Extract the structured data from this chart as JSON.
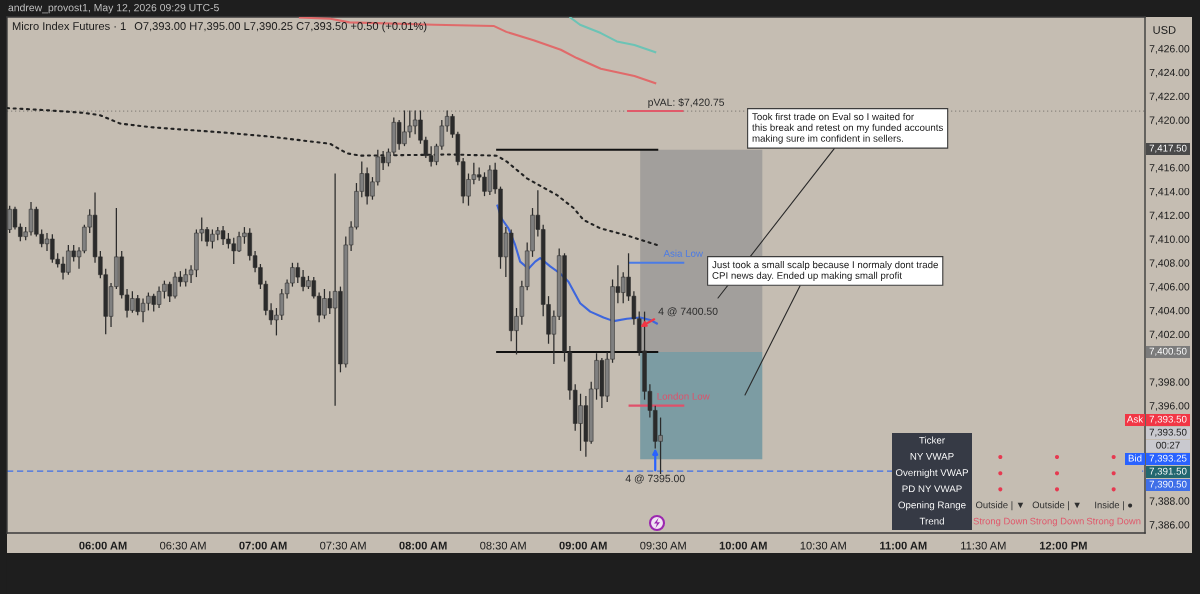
{
  "chart_data": [
    {
      "type": "candlestick",
      "title": "Micro Index Futures · 1",
      "subtitle": "O7,393.00 H7,395.00 L7,390.25 C7,393.50 +0.50 (+0.01%)",
      "ylabel": "USD",
      "color": "#2b2b2b",
      "x": [
        5.4167,
        5.45,
        5.4833,
        5.5167,
        5.55,
        5.5833,
        5.6167,
        5.65,
        5.6833,
        5.7167,
        5.75,
        5.7833,
        5.8167,
        5.85,
        5.8833,
        5.9167,
        5.95,
        5.9833,
        6.0167,
        6.05,
        6.0833,
        6.1167,
        6.15,
        6.1833,
        6.2167,
        6.25,
        6.2833,
        6.3167,
        6.35,
        6.3833,
        6.4167,
        6.45,
        6.4833,
        6.5167,
        6.55,
        6.5833,
        6.6167,
        6.65,
        6.6833,
        6.7167,
        6.75,
        6.7833,
        6.8167,
        6.85,
        6.8833,
        6.9167,
        6.95,
        6.9833,
        7.0167,
        7.05,
        7.0833,
        7.1167,
        7.15,
        7.1833,
        7.2167,
        7.25,
        7.2833,
        7.3167,
        7.35,
        7.3833,
        7.4167,
        7.45,
        7.4833,
        7.5167,
        7.55,
        7.5833,
        7.6167,
        7.65,
        7.6833,
        7.7167,
        7.75,
        7.7833,
        7.8167,
        7.85,
        7.8833,
        7.9167,
        7.95,
        7.9833,
        8.0167,
        8.05,
        8.0833,
        8.1167,
        8.15,
        8.1833,
        8.2167,
        8.25,
        8.2833,
        8.3167,
        8.35,
        8.3833,
        8.4167,
        8.45,
        8.4833,
        8.5167,
        8.55,
        8.5833,
        8.6167,
        8.65,
        8.6833,
        8.7167,
        8.75,
        8.7833,
        8.8167,
        8.85,
        8.8833,
        8.9167,
        8.95,
        8.9833,
        9.0167,
        9.05,
        9.0833,
        9.1167,
        9.15,
        9.1833,
        9.2167,
        9.25,
        9.2833,
        9.3167,
        9.35,
        9.3833,
        9.4167,
        9.45,
        9.4833
      ],
      "ohlc": [
        [
          7410.8,
          7412.8,
          7410.5,
          7412.5
        ],
        [
          7412.5,
          7412.7,
          7410.8,
          7411.0
        ],
        [
          7411.0,
          7411.3,
          7409.8,
          7410.2
        ],
        [
          7410.2,
          7411.0,
          7409.9,
          7410.6
        ],
        [
          7410.6,
          7413.1,
          7410.3,
          7412.5
        ],
        [
          7412.5,
          7412.7,
          7410.2,
          7410.4
        ],
        [
          7410.4,
          7410.8,
          7409.3,
          7409.6
        ],
        [
          7409.6,
          7410.5,
          7409.0,
          7410.0
        ],
        [
          7410.0,
          7410.4,
          7408.0,
          7408.3
        ],
        [
          7408.3,
          7408.8,
          7407.6,
          7407.9
        ],
        [
          7407.9,
          7408.5,
          7406.6,
          7407.2
        ],
        [
          7407.2,
          7409.5,
          7407.0,
          7409.0
        ],
        [
          7409.0,
          7409.5,
          7408.1,
          7408.5
        ],
        [
          7408.5,
          7409.3,
          7407.5,
          7409.0
        ],
        [
          7409.0,
          7411.2,
          7408.8,
          7411.0
        ],
        [
          7411.0,
          7412.5,
          7410.5,
          7412.0
        ],
        [
          7412.0,
          7413.9,
          7408.0,
          7408.5
        ],
        [
          7408.5,
          7409.0,
          7406.7,
          7407.0
        ],
        [
          7407.0,
          7407.5,
          7402.0,
          7403.5
        ],
        [
          7403.5,
          7406.3,
          7402.6,
          7406.0
        ],
        [
          7406.0,
          7412.6,
          7405.8,
          7408.5
        ],
        [
          7408.5,
          7409.0,
          7405.0,
          7405.3
        ],
        [
          7405.3,
          7405.8,
          7403.4,
          7404.0
        ],
        [
          7404.0,
          7405.6,
          7403.8,
          7405.0
        ],
        [
          7405.0,
          7405.3,
          7403.6,
          7403.9
        ],
        [
          7403.9,
          7405.0,
          7403.0,
          7404.6
        ],
        [
          7404.6,
          7405.5,
          7404.0,
          7405.2
        ],
        [
          7405.2,
          7405.4,
          7403.9,
          7404.5
        ],
        [
          7404.5,
          7406.0,
          7404.2,
          7405.6
        ],
        [
          7405.6,
          7406.5,
          7405.0,
          7406.2
        ],
        [
          7406.2,
          7406.4,
          7404.7,
          7405.2
        ],
        [
          7405.2,
          7407.2,
          7405.0,
          7406.8
        ],
        [
          7406.8,
          7407.3,
          7406.0,
          7406.4
        ],
        [
          7406.4,
          7407.5,
          7406.0,
          7407.0
        ],
        [
          7407.0,
          7407.8,
          7406.3,
          7407.4
        ],
        [
          7407.4,
          7410.8,
          7406.8,
          7410.5
        ],
        [
          7410.5,
          7411.8,
          7409.8,
          7410.8
        ],
        [
          7410.8,
          7411.0,
          7409.4,
          7409.8
        ],
        [
          7409.8,
          7410.8,
          7409.2,
          7410.4
        ],
        [
          7410.4,
          7411.0,
          7409.9,
          7410.7
        ],
        [
          7410.7,
          7411.1,
          7409.5,
          7410.0
        ],
        [
          7410.0,
          7410.5,
          7409.2,
          7409.6
        ],
        [
          7409.6,
          7410.1,
          7407.9,
          7409.0
        ],
        [
          7409.0,
          7410.6,
          7408.9,
          7410.2
        ],
        [
          7410.2,
          7411.0,
          7409.6,
          7410.5
        ],
        [
          7410.5,
          7410.9,
          7408.2,
          7408.6
        ],
        [
          7408.6,
          7409.0,
          7407.2,
          7407.6
        ],
        [
          7407.6,
          7407.9,
          7405.8,
          7406.2
        ],
        [
          7406.2,
          7406.5,
          7403.6,
          7404.0
        ],
        [
          7404.0,
          7404.6,
          7402.8,
          7403.2
        ],
        [
          7403.2,
          7404.2,
          7401.9,
          7403.6
        ],
        [
          7403.6,
          7405.8,
          7403.2,
          7405.4
        ],
        [
          7405.4,
          7406.6,
          7405.0,
          7406.3
        ],
        [
          7406.3,
          7408.0,
          7406.0,
          7407.6
        ],
        [
          7407.6,
          7408.0,
          7406.3,
          7406.8
        ],
        [
          7406.8,
          7407.4,
          7405.6,
          7406.0
        ],
        [
          7406.0,
          7406.9,
          7405.8,
          7406.5
        ],
        [
          7406.5,
          7406.8,
          7405.0,
          7405.2
        ],
        [
          7405.2,
          7405.5,
          7403.0,
          7403.6
        ],
        [
          7403.6,
          7405.8,
          7403.3,
          7405.0
        ],
        [
          7405.0,
          7405.6,
          7403.7,
          7404.2
        ],
        [
          7404.2,
          7415.5,
          7396.0,
          7405.6
        ],
        [
          7405.6,
          7406.0,
          7398.8,
          7399.5
        ],
        [
          7399.5,
          7410.2,
          7399.2,
          7409.5
        ],
        [
          7409.5,
          7411.5,
          7409.0,
          7411.0
        ],
        [
          7411.0,
          7414.7,
          7410.8,
          7414.0
        ],
        [
          7414.0,
          7416.5,
          7413.5,
          7415.5
        ],
        [
          7415.5,
          7416.0,
          7412.9,
          7413.6
        ],
        [
          7413.6,
          7415.2,
          7413.3,
          7414.8
        ],
        [
          7414.8,
          7417.5,
          7414.5,
          7416.9
        ],
        [
          7416.9,
          7417.4,
          7415.8,
          7416.4
        ],
        [
          7416.4,
          7417.6,
          7416.1,
          7417.3
        ],
        [
          7417.3,
          7420.2,
          7417.0,
          7419.8
        ],
        [
          7419.8,
          7420.0,
          7417.5,
          7418.0
        ],
        [
          7418.0,
          7420.8,
          7417.8,
          7419.0
        ],
        [
          7419.0,
          7420.8,
          7418.5,
          7419.5
        ],
        [
          7419.5,
          7420.8,
          7418.8,
          7420.0
        ],
        [
          7420.0,
          7420.8,
          7418.0,
          7418.3
        ],
        [
          7418.3,
          7418.6,
          7416.8,
          7417.0
        ],
        [
          7417.0,
          7417.8,
          7416.1,
          7416.5
        ],
        [
          7416.5,
          7418.0,
          7416.2,
          7417.8
        ],
        [
          7417.8,
          7420.0,
          7417.5,
          7419.5
        ],
        [
          7419.5,
          7420.8,
          7419.0,
          7420.3
        ],
        [
          7420.3,
          7420.5,
          7418.5,
          7418.8
        ],
        [
          7418.8,
          7419.0,
          7416.2,
          7416.5
        ],
        [
          7416.5,
          7416.8,
          7413.0,
          7413.6
        ],
        [
          7413.6,
          7415.5,
          7412.8,
          7415.0
        ],
        [
          7415.0,
          7416.4,
          7414.6,
          7415.4
        ],
        [
          7415.4,
          7416.0,
          7414.9,
          7415.2
        ],
        [
          7415.2,
          7415.6,
          7413.6,
          7414.0
        ],
        [
          7414.0,
          7416.2,
          7413.7,
          7415.8
        ],
        [
          7415.8,
          7416.4,
          7413.8,
          7414.2
        ],
        [
          7414.2,
          7414.4,
          7407.5,
          7408.5
        ],
        [
          7408.5,
          7411.0,
          7406.8,
          7410.5
        ],
        [
          7410.5,
          7410.8,
          7401.4,
          7402.3
        ],
        [
          7402.3,
          7404.2,
          7400.3,
          7403.5
        ],
        [
          7403.5,
          7406.5,
          7402.8,
          7406.0
        ],
        [
          7406.0,
          7409.7,
          7405.7,
          7409.0
        ],
        [
          7409.0,
          7412.6,
          7408.5,
          7412.0
        ],
        [
          7412.0,
          7414.1,
          7410.2,
          7410.8
        ],
        [
          7410.8,
          7411.2,
          7403.5,
          7404.5
        ],
        [
          7404.5,
          7405.2,
          7401.2,
          7402.0
        ],
        [
          7402.0,
          7404.0,
          7399.5,
          7403.5
        ],
        [
          7403.5,
          7409.2,
          7403.2,
          7408.6
        ],
        [
          7408.6,
          7408.8,
          7399.7,
          7400.5
        ],
        [
          7400.5,
          7401.0,
          7396.5,
          7397.3
        ],
        [
          7397.3,
          7397.8,
          7393.9,
          7394.5
        ],
        [
          7394.5,
          7397.0,
          7392.2,
          7396.0
        ],
        [
          7396.0,
          7396.8,
          7391.7,
          7393.0
        ],
        [
          7393.0,
          7398.0,
          7392.8,
          7397.4
        ],
        [
          7397.4,
          7400.4,
          7396.5,
          7399.8
        ],
        [
          7399.8,
          7400.0,
          7395.8,
          7396.8
        ],
        [
          7396.8,
          7400.5,
          7396.3,
          7399.9
        ],
        [
          7399.9,
          7406.6,
          7399.6,
          7406.0
        ],
        [
          7406.0,
          7407.8,
          7404.6,
          7405.5
        ],
        [
          7405.5,
          7407.2,
          7404.6,
          7406.8
        ],
        [
          7406.8,
          7408.8,
          7404.8,
          7405.2
        ],
        [
          7405.2,
          7405.6,
          7402.8,
          7403.3
        ],
        [
          7403.3,
          7403.9,
          7400.2,
          7400.6
        ],
        [
          7400.6,
          7403.9,
          7396.5,
          7397.2
        ],
        [
          7397.2,
          7397.8,
          7395.0,
          7395.6
        ],
        [
          7395.6,
          7396.0,
          7392.4,
          7393.0
        ],
        [
          7393.0,
          7395.0,
          7390.25,
          7393.5
        ]
      ],
      "series": [
        {
          "type": "bar",
          "x": [
            9.7375
          ],
          "base": [
            7400.5
          ],
          "values": [
            17.0
          ],
          "color": "#a29f9c"
        },
        {
          "type": "bar",
          "x": [
            9.7375
          ],
          "base": [
            7391.5
          ],
          "values": [
            9.0
          ],
          "color": "#7c9ca3"
        },
        {
          "type": "line",
          "line_style": "dotted",
          "color": "#222222",
          "x": [
            5.4,
            5.669,
            5.877,
            5.981,
            6.106,
            6.294,
            6.794,
            7.044,
            7.419,
            7.523,
            7.606,
            8.169,
            8.46,
            8.523,
            8.648,
            8.835,
            8.94,
            9.002,
            9.106,
            9.273,
            9.46
          ],
          "values": [
            7421.0,
            7420.8,
            7420.6,
            7420.4,
            7419.7,
            7419.4,
            7418.9,
            7418.6,
            7418.0,
            7417.2,
            7417.0,
            7417.1,
            7417.0,
            7416.5,
            7415.1,
            7413.7,
            7412.6,
            7411.6,
            7410.9,
            7410.3,
            7409.5
          ]
        },
        {
          "type": "line",
          "color": "#e06a6a",
          "x": [
            7.23,
            7.42,
            7.54,
            8.07,
            8.44,
            8.52,
            8.69,
            8.86,
            8.96,
            9.11,
            9.32,
            9.45
          ],
          "values": [
            7428.6,
            7428.5,
            7428.2,
            7428.0,
            7427.9,
            7427.4,
            7426.7,
            7425.9,
            7425.2,
            7424.3,
            7423.7,
            7423.1
          ]
        },
        {
          "type": "line",
          "color": "#6cc3b5",
          "x": [
            8.92,
            8.98,
            9.11,
            9.21,
            9.32,
            9.45
          ],
          "values": [
            7428.6,
            7428.0,
            7427.3,
            7426.6,
            7426.3,
            7425.7
          ]
        },
        {
          "type": "line",
          "color": "#3d66dd",
          "x": [
            8.464,
            8.491,
            8.533,
            8.575,
            8.606,
            8.658,
            8.7,
            8.731,
            8.794,
            8.856,
            8.908,
            8.981,
            9.044,
            9.127,
            9.19,
            9.273,
            9.356,
            9.419,
            9.46
          ],
          "values": [
            7412.8,
            7411.7,
            7410.9,
            7409.5,
            7408.1,
            7407.5,
            7408.1,
            7408.4,
            7407.7,
            7407.1,
            7406.4,
            7404.6,
            7403.9,
            7403.4,
            7403.1,
            7403.3,
            7403.4,
            7403.2,
            7402.9
          ]
        },
        {
          "type": "line",
          "color": "#111111",
          "x": [
            8.4625,
            9.4625
          ],
          "values": [
            7417.5,
            7417.5
          ]
        },
        {
          "type": "line",
          "color": "#111111",
          "x": [
            8.4625,
            9.4625
          ],
          "values": [
            7400.5,
            7400.5
          ]
        },
        {
          "type": "line",
          "color": "#e05a6a",
          "x": [
            9.28,
            9.62
          ],
          "values": [
            7420.75,
            7420.75
          ]
        },
        {
          "type": "line",
          "name": "Asia Low",
          "color": "#4a7be6",
          "x": [
            9.29,
            9.625
          ],
          "values": [
            7408.0,
            7408.0
          ]
        },
        {
          "type": "line",
          "name": "London Low",
          "color": "#e0506a",
          "x": [
            9.29,
            9.625
          ],
          "values": [
            7396.0,
            7396.0
          ]
        }
      ],
      "xlim": [
        5.4,
        12.51
      ],
      "xticks": [
        {
          "value": 6,
          "label": "06:00 AM"
        },
        {
          "value": 6.5,
          "label": "06:30 AM"
        },
        {
          "value": 7,
          "label": "07:00 AM"
        },
        {
          "value": 7.5,
          "label": "07:30 AM"
        },
        {
          "value": 8,
          "label": "08:00 AM"
        },
        {
          "value": 8.5,
          "label": "08:30 AM"
        },
        {
          "value": 9,
          "label": "09:00 AM"
        },
        {
          "value": 9.5,
          "label": "09:30 AM"
        },
        {
          "value": 10,
          "label": "10:00 AM"
        },
        {
          "value": 10.5,
          "label": "10:30 AM"
        },
        {
          "value": 11,
          "label": "11:00 AM"
        },
        {
          "value": 11.5,
          "label": "11:30 AM"
        },
        {
          "value": 12,
          "label": "12:00 PM"
        }
      ],
      "ylim": [
        7385.3,
        7428.65
      ],
      "yticks": [
        {
          "value": 7386,
          "label": "7,386.00"
        },
        {
          "value": 7388,
          "label": "7,388.00"
        },
        {
          "value": 7396,
          "label": "7,396.00"
        },
        {
          "value": 7398,
          "label": "7,398.00"
        },
        {
          "value": 7402,
          "label": "7,402.00"
        },
        {
          "value": 7404,
          "label": "7,404.00"
        },
        {
          "value": 7406,
          "label": "7,406.00"
        },
        {
          "value": 7408,
          "label": "7,408.00"
        },
        {
          "value": 7410,
          "label": "7,410.00"
        },
        {
          "value": 7412,
          "label": "7,412.00"
        },
        {
          "value": 7414,
          "label": "7,414.00"
        },
        {
          "value": 7416,
          "label": "7,416.00"
        },
        {
          "value": 7420,
          "label": "7,420.00"
        },
        {
          "value": 7422,
          "label": "7,422.00"
        },
        {
          "value": 7424,
          "label": "7,424.00"
        },
        {
          "value": 7426,
          "label": "7,426.00"
        }
      ],
      "ref_lines": [
        {
          "axis": "y",
          "value": 7420.75,
          "label": "pVAL: $7,420.75",
          "color": "#8c8780",
          "line_style": "dotted"
        },
        {
          "axis": "y",
          "value": 7390.5,
          "label": "7,390.50",
          "color": "#3f6fe8",
          "line_style": "dashed"
        }
      ],
      "annotations": [
        "andrew_provost1, May 12, 2026 09:29 UTC-5",
        "Took first trade on Eval so I waited for\nthis break and retest on my funded accounts\nmaking sure im confident in sellers.",
        "Just took a small scalp because I normaly dont trade\nCPI news day. Ended up making small profit",
        {
          "text": "4 @ 7400.50",
          "x": 9.356,
          "y": 7402.6
        },
        {
          "text": "4 @ 7395.00",
          "x": 9.45,
          "y": 7392.4
        },
        "7,417.50",
        "7,400.50",
        "Ask",
        "7,393.50",
        "7,393.50",
        "00:27",
        "Bid",
        "7,393.25",
        "7,391.50"
      ]
    },
    {
      "type": "other",
      "ylabel": "Ticker",
      "categories": [
        null,
        null,
        null
      ],
      "y_categories": [
        "NY VWAP",
        "Overnight VWAP",
        "PD NY VWAP",
        "Opening Range",
        "Trend"
      ],
      "cell_labels": [
        [
          "●",
          "●",
          "●"
        ],
        [
          "●",
          "●",
          "●"
        ],
        [
          "●",
          "●",
          "●"
        ],
        [
          "Outside | ▼",
          "Outside | ▼",
          "Inside | ●"
        ],
        [
          "Strong Down",
          "Strong Down",
          "Strong Down"
        ]
      ],
      "colors": [
        "#e63950",
        "#e63950",
        "#e63950",
        "#2f2f2f",
        "#e0566a"
      ]
    }
  ]
}
